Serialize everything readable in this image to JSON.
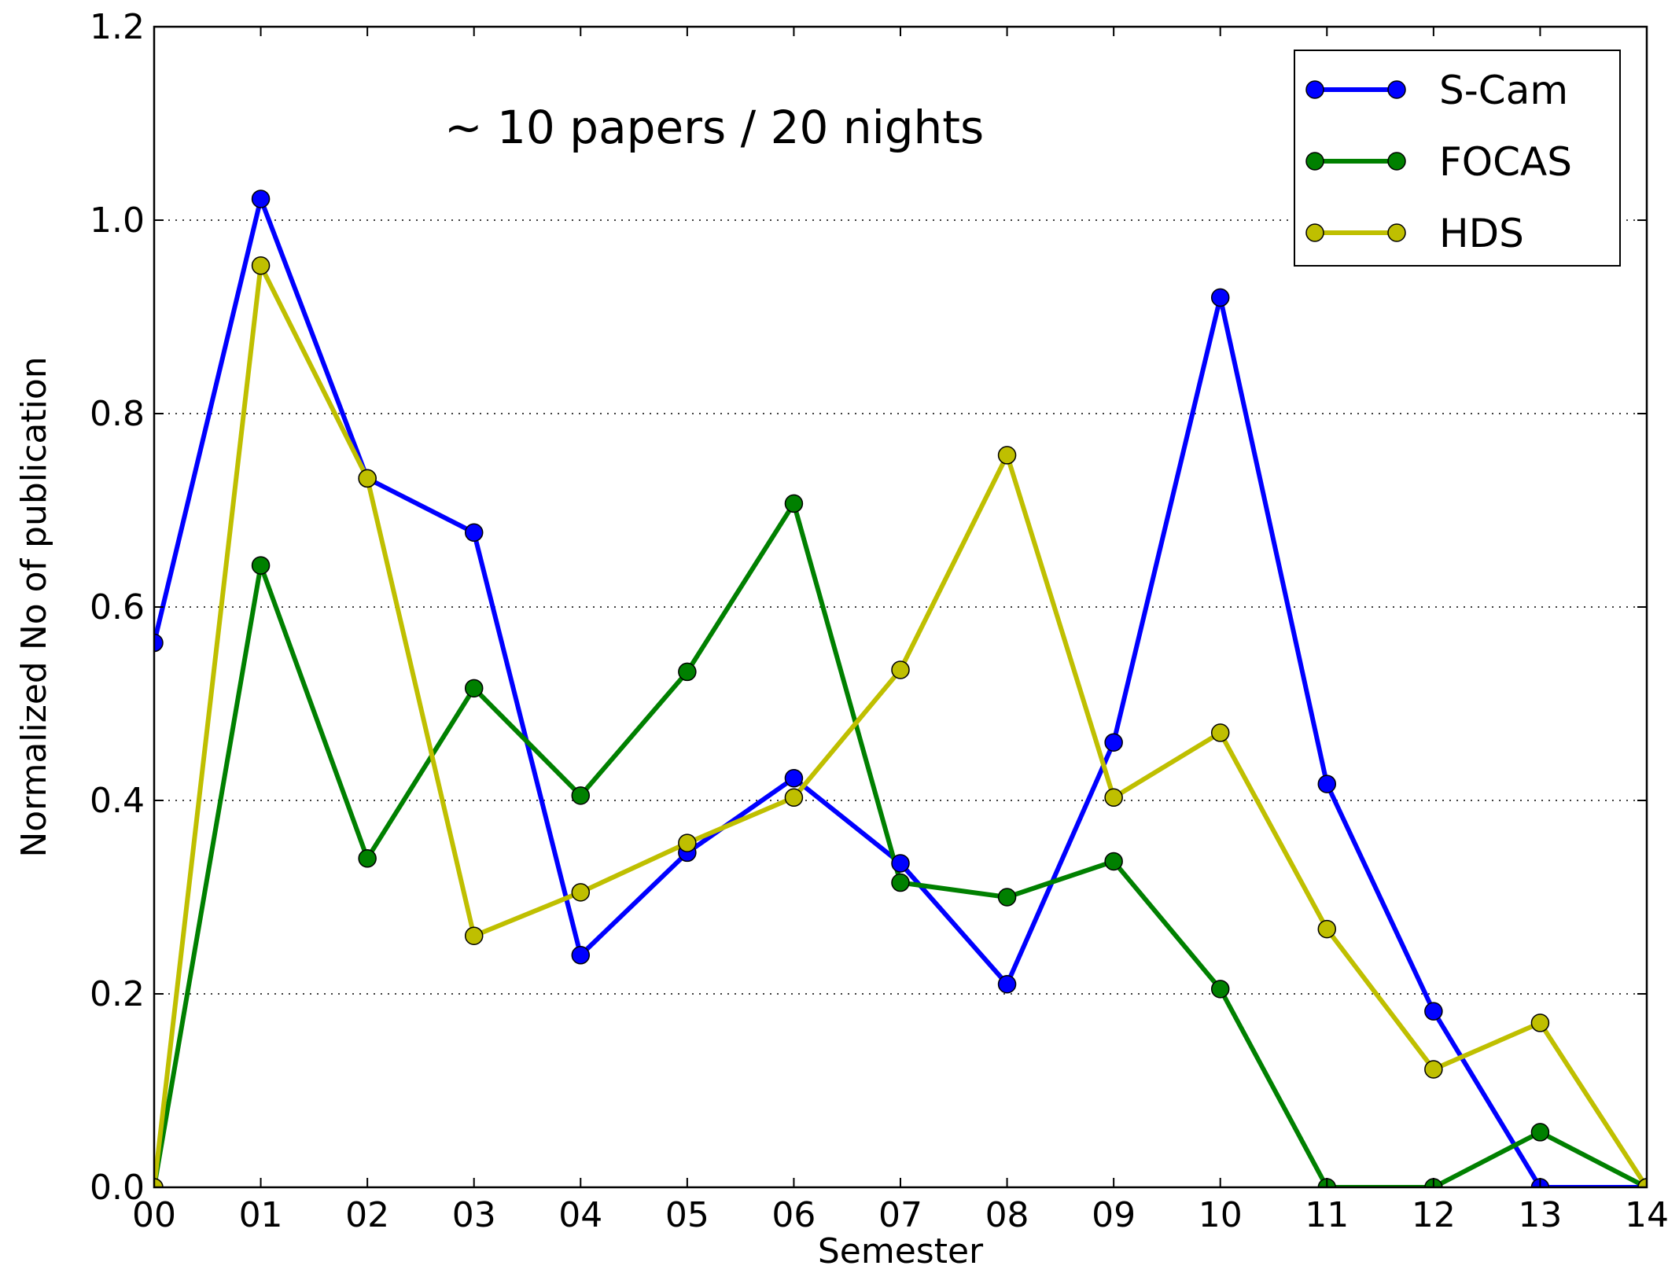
{
  "chart_data": {
    "type": "line",
    "title": "",
    "xlabel": "Semester",
    "ylabel": "Normalized No of publication",
    "annotation": "~ 10 papers / 20 nights",
    "categories": [
      "00",
      "01",
      "02",
      "03",
      "04",
      "05",
      "06",
      "07",
      "08",
      "09",
      "10",
      "11",
      "12",
      "13",
      "14"
    ],
    "yticks": [
      "0.0",
      "0.2",
      "0.4",
      "0.6",
      "0.8",
      "1.0",
      "1.2"
    ],
    "ylim": [
      0,
      1.2
    ],
    "grid": "horizontal dotted",
    "legend_position": "top-right",
    "series": [
      {
        "name": "S-Cam",
        "color": "#0000ff",
        "marker_color": "#0000ff",
        "values": [
          0.563,
          1.022,
          0.733,
          0.677,
          0.24,
          0.346,
          0.423,
          0.335,
          0.21,
          0.46,
          0.92,
          0.417,
          0.182,
          0.0,
          0.0
        ]
      },
      {
        "name": "FOCAS",
        "color": "#008000",
        "marker_color": "#008000",
        "values": [
          0.0,
          0.643,
          0.34,
          0.516,
          0.405,
          0.533,
          0.707,
          0.315,
          0.3,
          0.337,
          0.205,
          0.0,
          0.0,
          0.057,
          0.0
        ]
      },
      {
        "name": "HDS",
        "color": "#bfbf00",
        "marker_color": "#bfbf00",
        "values": [
          0.0,
          0.953,
          0.733,
          0.26,
          0.305,
          0.356,
          0.403,
          0.535,
          0.757,
          0.403,
          0.47,
          0.267,
          0.122,
          0.17,
          0.0
        ]
      }
    ]
  }
}
